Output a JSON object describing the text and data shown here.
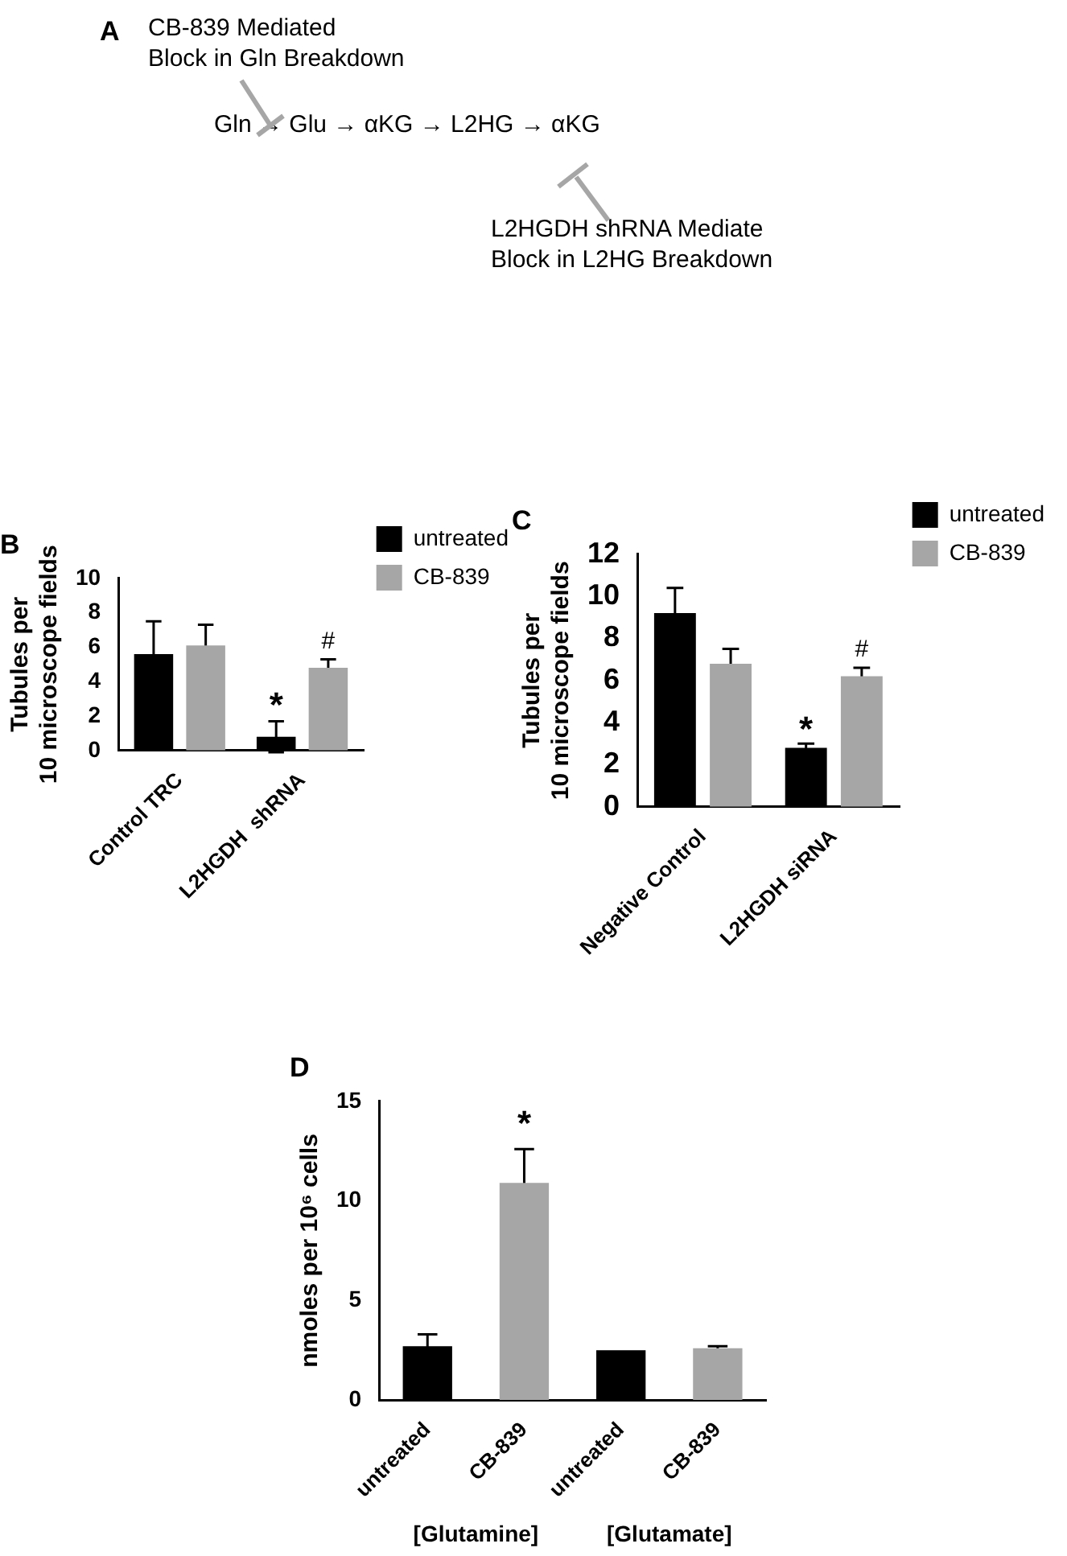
{
  "chart_data": [
    {
      "type": "other",
      "title": "A",
      "annotations": [
        "CB-839 Mediated\nBlock in Gln Breakdown",
        "Gln → Glu → αKG → L2HG → αKG",
        "L2HGDH shRNA Mediate\nBlock in L2HG Breakdown"
      ]
    },
    {
      "type": "bar",
      "title": "B",
      "ylabel": "Tubules per\n10 microscope fields",
      "categories": [
        "Control TRC",
        "L2HGDH  shRNA"
      ],
      "series": [
        {
          "name": "untreated",
          "color": "#000000",
          "values": [
            5.6,
            0.8
          ],
          "errors": [
            1.9,
            0.9
          ]
        },
        {
          "name": "CB-839",
          "color": "#a6a6a6",
          "values": [
            6.1,
            4.8
          ],
          "errors": [
            1.2,
            0.5
          ]
        }
      ],
      "ylim": [
        0,
        10
      ],
      "yticks": [
        0,
        2,
        4,
        6,
        8,
        10
      ],
      "legend": "right",
      "annotations": [
        "*",
        "#"
      ]
    },
    {
      "type": "bar",
      "title": "C",
      "ylabel": "Tubules per\n10 microscope fields",
      "categories": [
        "Negative Control",
        "L2HGDH siRNA"
      ],
      "series": [
        {
          "name": "untreated",
          "color": "#000000",
          "values": [
            9.2,
            2.8
          ],
          "errors": [
            1.2,
            0.2
          ]
        },
        {
          "name": "CB-839",
          "color": "#a6a6a6",
          "values": [
            6.8,
            6.2
          ],
          "errors": [
            0.7,
            0.4
          ]
        }
      ],
      "ylim": [
        0,
        12
      ],
      "yticks": [
        0,
        2,
        4,
        6,
        8,
        10,
        12
      ],
      "legend": "right",
      "annotations": [
        "*",
        "#"
      ]
    },
    {
      "type": "bar",
      "title": "D",
      "ylabel": "nmoles per 10⁶ cells",
      "categories": [
        "untreated",
        "CB-839",
        "untreated",
        "CB-839"
      ],
      "values": [
        2.7,
        10.9,
        2.5,
        2.6
      ],
      "errors": [
        0.6,
        1.7,
        null,
        0.1
      ],
      "colors": [
        "#000000",
        "#a6a6a6",
        "#000000",
        "#a6a6a6"
      ],
      "ylim": [
        0,
        15
      ],
      "yticks": [
        0,
        5,
        10,
        15
      ],
      "annotations": [
        "*",
        "[Glutamine]",
        "[Glutamate]"
      ]
    }
  ]
}
